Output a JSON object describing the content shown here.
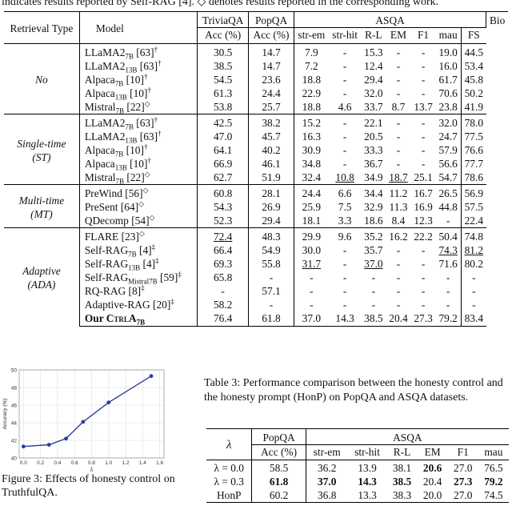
{
  "intro_line": "indicates results reported by Self-RAG [4]. ◇ denotes results reported in the corresponding work.",
  "table2": {
    "headers": {
      "retrieval_type": "Retrieval Type",
      "model": "Model",
      "triviaqa": "TriviaQA",
      "popqa": "PopQA",
      "asqa": "ASQA",
      "bio": "Bio",
      "acc": "Acc (%)",
      "acc2": "Acc (%)",
      "str_em": "str-em",
      "str_hit": "str-hit",
      "rl": "R-L",
      "em": "EM",
      "f1": "F1",
      "mau": "mau",
      "fs": "FS"
    },
    "groups": [
      {
        "label": "No",
        "rows": [
          {
            "model": "LLaMA2",
            "sub": "7B",
            "ref": " [63]",
            "mark": "†",
            "vals": [
              "30.5",
              "14.7",
              "7.9",
              "-",
              "15.3",
              "-",
              "-",
              "19.0",
              "44.5"
            ]
          },
          {
            "model": "LLaMA2",
            "sub": "13B",
            "ref": " [63]",
            "mark": "†",
            "vals": [
              "38.5",
              "14.7",
              "7.2",
              "-",
              "12.4",
              "-",
              "-",
              "16.0",
              "53.4"
            ]
          },
          {
            "model": "Alpaca",
            "sub": "7B",
            "ref": " [10]",
            "mark": "†",
            "vals": [
              "54.5",
              "23.6",
              "18.8",
              "-",
              "29.4",
              "-",
              "-",
              "61.7",
              "45.8"
            ]
          },
          {
            "model": "Alpaca",
            "sub": "13B",
            "ref": " [10]",
            "mark": "†",
            "vals": [
              "61.3",
              "24.4",
              "22.9",
              "-",
              "32.0",
              "-",
              "-",
              "70.6",
              "50.2"
            ]
          },
          {
            "model": "Mistral",
            "sub": "7B",
            "ref": " [22]",
            "mark": "◇",
            "vals": [
              "53.8",
              "25.7",
              "18.8",
              "4.6",
              "33.7",
              "8.7",
              "13.7",
              "23.8",
              "41.9"
            ]
          }
        ]
      },
      {
        "label": "Single-time (ST)",
        "rows": [
          {
            "model": "LLaMA2",
            "sub": "7B",
            "ref": " [63]",
            "mark": "†",
            "vals": [
              "42.5",
              "38.2",
              "15.2",
              "-",
              "22.1",
              "-",
              "-",
              "32.0",
              "78.0"
            ]
          },
          {
            "model": "LLaMA2",
            "sub": "13B",
            "ref": " [63]",
            "mark": "†",
            "vals": [
              "47.0",
              "45.7",
              "16.3",
              "-",
              "20.5",
              "-",
              "-",
              "24.7",
              "77.5"
            ]
          },
          {
            "model": "Alpaca",
            "sub": "7B",
            "ref": " [10]",
            "mark": "†",
            "vals": [
              "64.1",
              "40.2",
              "30.9",
              "-",
              "33.3",
              "-",
              "-",
              "57.9",
              "76.6"
            ]
          },
          {
            "model": "Alpaca",
            "sub": "13B",
            "ref": " [10]",
            "mark": "†",
            "vals": [
              "66.9",
              "46.1",
              "34.8",
              "-",
              "36.7",
              "-",
              "-",
              "56.6",
              "77.7"
            ]
          },
          {
            "model": "Mistral",
            "sub": "7B",
            "ref": " [22]",
            "mark": "◇",
            "vals": [
              "62.7",
              "51.9",
              "32.4",
              "10.8",
              "34.9",
              "18.7",
              "25.1",
              "54.7",
              "78.6"
            ]
          }
        ]
      },
      {
        "label": "Multi-time (MT)",
        "rows": [
          {
            "model": "PreWind",
            "sub": "",
            "ref": " [56]",
            "mark": "◇",
            "vals": [
              "60.8",
              "28.1",
              "24.4",
              "6.6",
              "34.4",
              "11.2",
              "16.7",
              "26.5",
              "56.9"
            ]
          },
          {
            "model": "PreSent",
            "sub": "",
            "ref": " [64]",
            "mark": "◇",
            "vals": [
              "54.3",
              "26.9",
              "25.9",
              "7.5",
              "32.9",
              "11.3",
              "16.9",
              "44.8",
              "57.5"
            ]
          },
          {
            "model": "QDecomp",
            "sub": "",
            "ref": " [54]",
            "mark": "◇",
            "vals": [
              "52.3",
              "29.4",
              "18.1",
              "3.3",
              "18.6",
              "8.4",
              "12.3",
              "-",
              "22.4"
            ]
          }
        ]
      },
      {
        "label": "Adaptive (ADA)",
        "rows": [
          {
            "model": "FLARE",
            "sub": "",
            "ref": " [23]",
            "mark": "◇",
            "vals": [
              "72.4",
              "48.3",
              "29.9",
              "9.6",
              "35.2",
              "16.2",
              "22.2",
              "50.4",
              "74.8"
            ]
          },
          {
            "model": "Self-RAG",
            "sub": "7B",
            "ref": " [4]",
            "mark": "‡",
            "vals": [
              "66.4",
              "54.9",
              "30.0",
              "-",
              "35.7",
              "-",
              "-",
              "74.3",
              "81.2"
            ]
          },
          {
            "model": "Self-RAG",
            "sub": "13B",
            "ref": " [4]",
            "mark": "‡",
            "vals": [
              "69.3",
              "55.8",
              "31.7",
              "-",
              "37.0",
              "-",
              "-",
              "71.6",
              "80.2"
            ]
          },
          {
            "model": "Self-RAG",
            "sub": "Mistral7B",
            "ref": " [59]",
            "mark": "‡",
            "vals": [
              "65.8",
              "-",
              "-",
              "-",
              "-",
              "-",
              "-",
              "-",
              "-"
            ]
          },
          {
            "model": "RQ-RAG",
            "sub": "",
            "ref": " [8]",
            "mark": "‡",
            "vals": [
              "-",
              "57.1",
              "-",
              "-",
              "-",
              "-",
              "-",
              "-",
              "-"
            ]
          },
          {
            "model": "Adaptive-RAG",
            "sub": "",
            "ref": " [20]",
            "mark": "‡",
            "vals": [
              "58.2",
              "-",
              "-",
              "-",
              "-",
              "-",
              "-",
              "-",
              "-"
            ]
          },
          {
            "model": "Our ",
            "name_sc": "CtrlA",
            "sub": "7B",
            "ref": "",
            "mark": "",
            "vals": [
              "76.4",
              "61.8",
              "37.0",
              "14.3",
              "38.5",
              "20.4",
              "27.3",
              "79.2",
              "83.4"
            ]
          }
        ]
      }
    ]
  },
  "figure3": {
    "caption": "Figure 3: Effects of honesty control on TruthfulQA.",
    "chart_data": {
      "type": "line",
      "x": [
        0.0,
        0.3,
        0.5,
        0.7,
        1.0,
        1.5
      ],
      "y": [
        41.3,
        41.5,
        42.2,
        44.1,
        46.3,
        49.3
      ],
      "xlabel": "λ",
      "ylabel": "Accuracy (%)",
      "xticks": [
        "0.0",
        "0.2",
        "0.4",
        "0.6",
        "0.8",
        "1.0",
        "1.2",
        "1.4",
        "1.6"
      ],
      "yticks": [
        "40",
        "42",
        "44",
        "46",
        "48",
        "50"
      ],
      "xlim": [
        -0.05,
        1.65
      ],
      "ylim": [
        40,
        50
      ],
      "grid": true,
      "color": "#2c3e9e"
    }
  },
  "table3": {
    "caption": "Table 3: Performance comparison between the honesty control and the honesty prompt (HonP) on PopQA and ASQA datasets.",
    "headers": {
      "lambda": "λ",
      "popqa": "PopQA",
      "asqa": "ASQA",
      "acc": "Acc (%)",
      "str_em": "str-em",
      "str_hit": "str-hit",
      "rl": "R-L",
      "em": "EM",
      "f1": "F1",
      "mau": "mau"
    },
    "rows": [
      {
        "label": "λ = 0.0",
        "vals": [
          "58.5",
          "36.2",
          "13.9",
          "38.1",
          "20.6",
          "27.0",
          "76.5"
        ]
      },
      {
        "label": "λ = 0.3",
        "vals": [
          "61.8",
          "37.0",
          "14.3",
          "38.5",
          "20.4",
          "27.3",
          "79.2"
        ]
      },
      {
        "label": "HonP",
        "vals": [
          "60.2",
          "36.8",
          "13.3",
          "38.3",
          "20.0",
          "27.0",
          "74.5"
        ]
      }
    ]
  }
}
